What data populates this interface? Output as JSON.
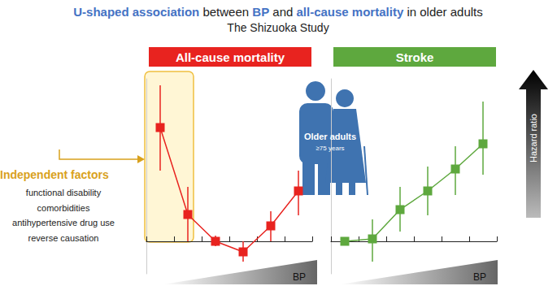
{
  "title": {
    "segments": [
      {
        "text": "U-shaped association",
        "color": "#4472c4"
      },
      {
        "text": " between ",
        "color": "#222222"
      },
      {
        "text": "BP",
        "color": "#4472c4"
      },
      {
        "text": " and ",
        "color": "#222222"
      },
      {
        "text": "all-cause mortality",
        "color": "#4472c4"
      },
      {
        "text": " in older adults",
        "color": "#222222"
      }
    ],
    "subtitle": "The Shizuoka Study"
  },
  "annotation": {
    "title": "Independent factors",
    "color": "#d9a11d",
    "items": [
      "functional disability",
      "comorbidities",
      "antihypertensive drug use",
      "reverse causation"
    ]
  },
  "figure": {
    "label": "Older adults",
    "sublabel": "≥75 years",
    "color": "#3f73b0"
  },
  "chart_data": [
    {
      "type": "line",
      "title": "All-cause mortality",
      "color": "#e8231f",
      "marker": "square",
      "line_style": "solid",
      "categories": [
        null,
        null,
        null,
        null,
        null,
        null
      ],
      "values": [
        2.8,
        0.66,
        0,
        -0.26,
        0.38,
        1.24
      ],
      "error_low": [
        1.74,
        0,
        -0.12,
        -0.5,
        0,
        0.64
      ],
      "error_high": [
        3.84,
        1.34,
        0.14,
        0,
        0.74,
        1.74
      ],
      "xlabel": "BP",
      "ylim": [
        -0.8,
        4
      ],
      "yticks": [
        0
      ],
      "grid": false,
      "tick_labels": false
    },
    {
      "type": "line",
      "title": "Stroke",
      "color": "#5ea83e",
      "marker": "square",
      "line_style": "solid",
      "categories": [
        null,
        null,
        null,
        null,
        null,
        null
      ],
      "values": [
        0,
        0.06,
        0.78,
        1.24,
        1.78,
        2.4
      ],
      "error_low": [
        -0.04,
        -0.5,
        0.24,
        0.64,
        1.14,
        1.64
      ],
      "error_high": [
        0.04,
        0.54,
        1.34,
        1.84,
        2.34,
        3.44
      ],
      "xlabel": "BP",
      "ylabel": "Hazard ratio",
      "ylim": [
        -0.8,
        4
      ],
      "yticks": [
        0
      ],
      "grid": false,
      "tick_labels": false
    }
  ]
}
